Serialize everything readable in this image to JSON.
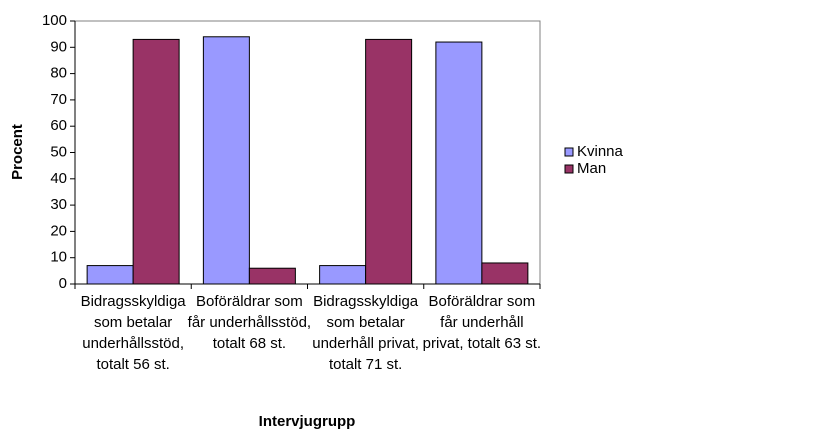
{
  "chart_data": {
    "type": "bar",
    "categories": [
      "Bidragsskyldiga som betalar underhållsstöd, totalt 56 st.",
      "Boföräldrar som får underhållsstöd, totalt 68 st.",
      "Bidragsskyldiga som betalar underhåll privat, totalt 71 st.",
      "Boföräldrar som får underhåll privat, totalt 63 st."
    ],
    "series": [
      {
        "name": "Kvinna",
        "color": "#9999ff",
        "values": [
          7,
          94,
          7,
          92
        ]
      },
      {
        "name": "Man",
        "color": "#993366",
        "values": [
          93,
          6,
          93,
          8
        ]
      }
    ],
    "ylabel": "Procent",
    "xlabel": "Intervjugrupp",
    "ylim": [
      0,
      100
    ],
    "yticks": [
      0,
      10,
      20,
      30,
      40,
      50,
      60,
      70,
      80,
      90,
      100
    ],
    "legend": "right"
  }
}
